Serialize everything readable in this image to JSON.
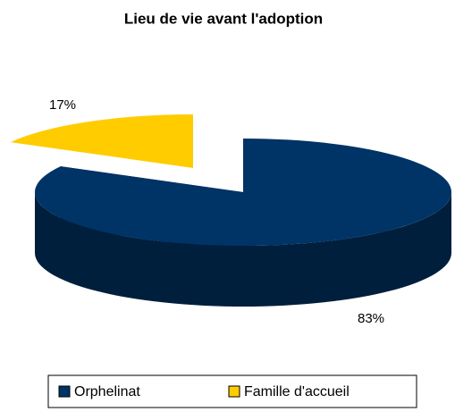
{
  "chart_data": {
    "type": "pie3d",
    "title": "Lieu de vie avant l'adoption",
    "categories": [
      "Orphelinat",
      "Famille d'accueil"
    ],
    "values": [
      83,
      17
    ],
    "value_labels": [
      "83%",
      "17%"
    ],
    "colors": [
      "#003366",
      "#ffcc00"
    ],
    "legend": "bottom"
  }
}
